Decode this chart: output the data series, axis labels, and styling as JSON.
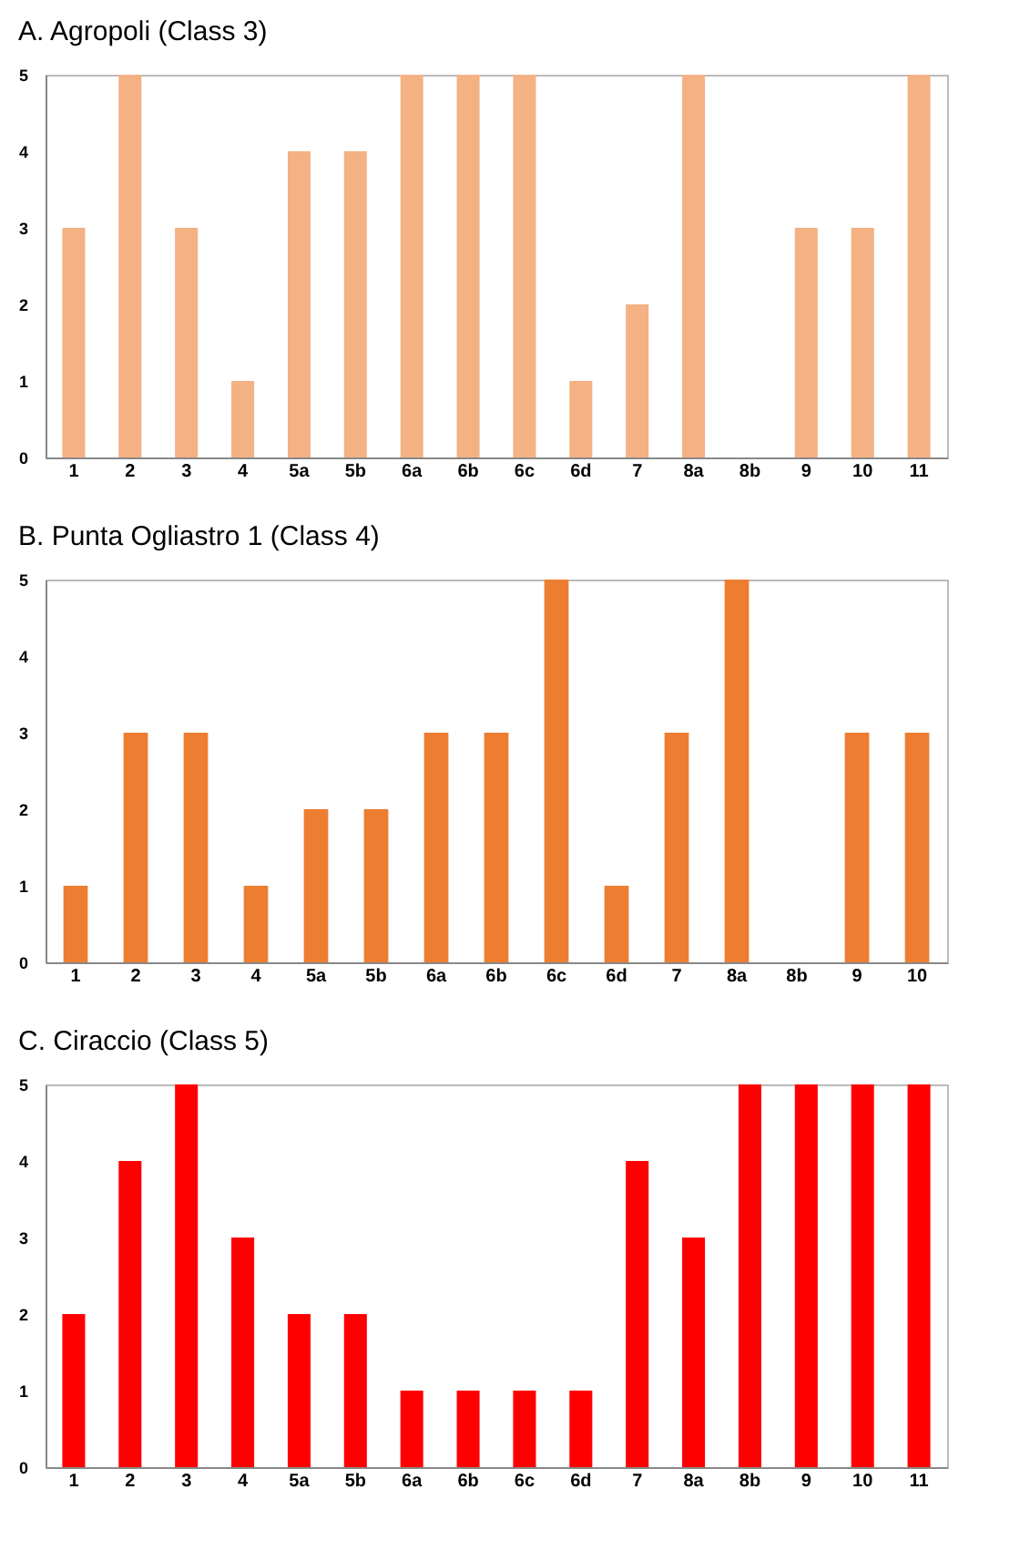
{
  "chart_data": [
    {
      "type": "bar",
      "title": "A. Agropoli (Class 3)",
      "categories": [
        "1",
        "2",
        "3",
        "4",
        "5a",
        "5b",
        "6a",
        "6b",
        "6c",
        "6d",
        "7",
        "8a",
        "8b",
        "9",
        "10",
        "11"
      ],
      "series": [
        {
          "color": "#f4b183",
          "values": [
            3,
            5,
            3,
            1,
            4,
            4,
            5,
            5,
            5,
            1,
            2,
            5,
            0,
            3,
            3,
            5
          ]
        }
      ],
      "ylim": [
        0,
        5
      ],
      "yticks": [
        0,
        1,
        2,
        3,
        4,
        5
      ]
    },
    {
      "type": "bar",
      "title": "B. Punta Ogliastro 1 (Class 4)",
      "categories": [
        "1",
        "2",
        "3",
        "4",
        "5a",
        "5b",
        "6a",
        "6b",
        "6c",
        "6d",
        "7",
        "8a",
        "8b",
        "9",
        "10"
      ],
      "series": [
        {
          "color": "#ed7d31",
          "values": [
            1,
            3,
            3,
            1,
            2,
            2,
            3,
            3,
            5,
            1,
            3,
            5,
            0,
            3,
            3
          ]
        }
      ],
      "ylim": [
        0,
        5
      ],
      "yticks": [
        0,
        1,
        2,
        3,
        4,
        5
      ]
    },
    {
      "type": "bar",
      "title": "C. Ciraccio (Class 5)",
      "categories": [
        "1",
        "2",
        "3",
        "4",
        "5a",
        "5b",
        "6a",
        "6b",
        "6c",
        "6d",
        "7",
        "8a",
        "8b",
        "9",
        "10",
        "11"
      ],
      "series": [
        {
          "color": "#ff0000",
          "values": [
            2,
            4,
            5,
            3,
            2,
            2,
            1,
            1,
            1,
            1,
            4,
            3,
            5,
            5,
            5,
            5
          ]
        }
      ],
      "ylim": [
        0,
        5
      ],
      "yticks": [
        0,
        1,
        2,
        3,
        4,
        5
      ]
    }
  ]
}
